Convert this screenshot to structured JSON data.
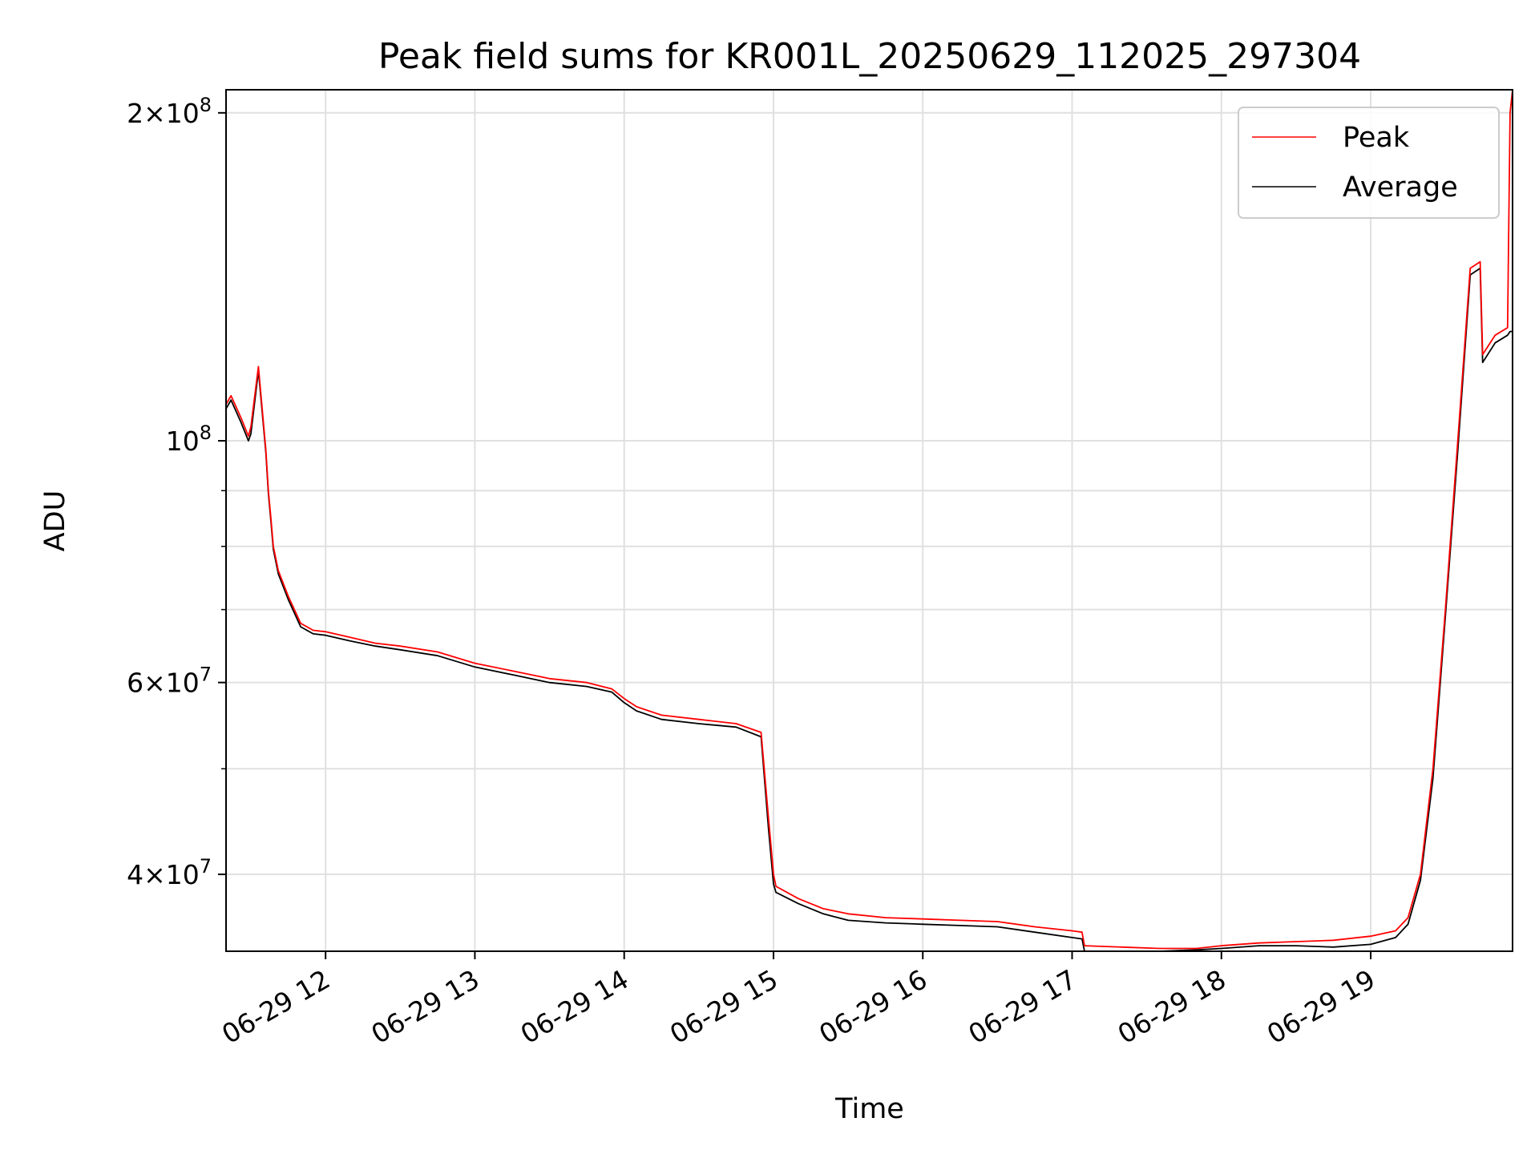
{
  "chart_data": {
    "type": "line",
    "title": "Peak field sums for KR001L_20250629_112025_297304",
    "xlabel": "Time",
    "ylabel": "ADU",
    "yscale": "log",
    "xlim": [
      "2025-06-29 11:20",
      "2025-06-29 19:57"
    ],
    "ylim": [
      34000000,
      210000000
    ],
    "grid": true,
    "legend_position": "top-right",
    "x_ticks": [
      "06-29 12",
      "06-29 13",
      "06-29 14",
      "06-29 15",
      "06-29 16",
      "06-29 17",
      "06-29 18",
      "06-29 19"
    ],
    "y_ticks": [
      {
        "value": 200000000,
        "mantissa": "2",
        "exponent": "8"
      },
      {
        "value": 100000000,
        "mantissa": "",
        "exponent": "8"
      },
      {
        "value": 60000000,
        "mantissa": "6",
        "exponent": "7"
      },
      {
        "value": 40000000,
        "mantissa": "4",
        "exponent": "7"
      }
    ],
    "series": [
      {
        "name": "Peak",
        "color": "#ff0000",
        "x": [
          "2025-06-29 11:20",
          "2025-06-29 11:22",
          "2025-06-29 11:26",
          "2025-06-29 11:29",
          "2025-06-29 11:30",
          "2025-06-29 11:33",
          "2025-06-29 11:36",
          "2025-06-29 11:37",
          "2025-06-29 11:38",
          "2025-06-29 11:39",
          "2025-06-29 11:41",
          "2025-06-29 11:45",
          "2025-06-29 11:50",
          "2025-06-29 11:55",
          "2025-06-29 12:00",
          "2025-06-29 12:10",
          "2025-06-29 12:20",
          "2025-06-29 12:30",
          "2025-06-29 12:45",
          "2025-06-29 13:00",
          "2025-06-29 13:15",
          "2025-06-29 13:30",
          "2025-06-29 13:45",
          "2025-06-29 13:55",
          "2025-06-29 14:00",
          "2025-06-29 14:05",
          "2025-06-29 14:15",
          "2025-06-29 14:30",
          "2025-06-29 14:45",
          "2025-06-29 14:55",
          "2025-06-29 14:58",
          "2025-06-29 15:00",
          "2025-06-29 15:01",
          "2025-06-29 15:10",
          "2025-06-29 15:20",
          "2025-06-29 15:30",
          "2025-06-29 15:45",
          "2025-06-29 16:00",
          "2025-06-29 16:15",
          "2025-06-29 16:30",
          "2025-06-29 16:45",
          "2025-06-29 17:00",
          "2025-06-29 17:04",
          "2025-06-29 17:05",
          "2025-06-29 17:20",
          "2025-06-29 17:35",
          "2025-06-29 17:50",
          "2025-06-29 18:00",
          "2025-06-29 18:15",
          "2025-06-29 18:30",
          "2025-06-29 18:45",
          "2025-06-29 19:00",
          "2025-06-29 19:10",
          "2025-06-29 19:15",
          "2025-06-29 19:20",
          "2025-06-29 19:25",
          "2025-06-29 19:30",
          "2025-06-29 19:35",
          "2025-06-29 19:40",
          "2025-06-29 19:44",
          "2025-06-29 19:45",
          "2025-06-29 19:50",
          "2025-06-29 19:55",
          "2025-06-29 19:56",
          "2025-06-29 19:57"
        ],
        "values": [
          108000000,
          110000000,
          105000000,
          101000000,
          103000000,
          117000000,
          98000000,
          90000000,
          85000000,
          80000000,
          76000000,
          72000000,
          68000000,
          67000000,
          66800000,
          66000000,
          65200000,
          64800000,
          64000000,
          62500000,
          61500000,
          60500000,
          60000000,
          59200000,
          58000000,
          57000000,
          56000000,
          55500000,
          55000000,
          54000000,
          45000000,
          40000000,
          39000000,
          38000000,
          37200000,
          36800000,
          36500000,
          36400000,
          36300000,
          36200000,
          35800000,
          35500000,
          35400000,
          34400000,
          34300000,
          34200000,
          34200000,
          34400000,
          34600000,
          34700000,
          34800000,
          35100000,
          35500000,
          36500000,
          40000000,
          50000000,
          70000000,
          100000000,
          144000000,
          146000000,
          120000000,
          125000000,
          127000000,
          200000000,
          210000000
        ]
      },
      {
        "name": "Average",
        "color": "#000000",
        "x": [
          "2025-06-29 11:20",
          "2025-06-29 11:22",
          "2025-06-29 11:26",
          "2025-06-29 11:29",
          "2025-06-29 11:30",
          "2025-06-29 11:33",
          "2025-06-29 11:36",
          "2025-06-29 11:37",
          "2025-06-29 11:38",
          "2025-06-29 11:39",
          "2025-06-29 11:41",
          "2025-06-29 11:45",
          "2025-06-29 11:50",
          "2025-06-29 11:55",
          "2025-06-29 12:00",
          "2025-06-29 12:10",
          "2025-06-29 12:20",
          "2025-06-29 12:30",
          "2025-06-29 12:45",
          "2025-06-29 13:00",
          "2025-06-29 13:15",
          "2025-06-29 13:30",
          "2025-06-29 13:45",
          "2025-06-29 13:55",
          "2025-06-29 14:00",
          "2025-06-29 14:05",
          "2025-06-29 14:15",
          "2025-06-29 14:30",
          "2025-06-29 14:45",
          "2025-06-29 14:55",
          "2025-06-29 14:58",
          "2025-06-29 15:00",
          "2025-06-29 15:01",
          "2025-06-29 15:10",
          "2025-06-29 15:20",
          "2025-06-29 15:30",
          "2025-06-29 15:45",
          "2025-06-29 16:00",
          "2025-06-29 16:15",
          "2025-06-29 16:30",
          "2025-06-29 16:45",
          "2025-06-29 17:00",
          "2025-06-29 17:04",
          "2025-06-29 17:05",
          "2025-06-29 17:20",
          "2025-06-29 17:35",
          "2025-06-29 17:50",
          "2025-06-29 18:00",
          "2025-06-29 18:15",
          "2025-06-29 18:30",
          "2025-06-29 18:45",
          "2025-06-29 19:00",
          "2025-06-29 19:10",
          "2025-06-29 19:15",
          "2025-06-29 19:20",
          "2025-06-29 19:25",
          "2025-06-29 19:30",
          "2025-06-29 19:35",
          "2025-06-29 19:40",
          "2025-06-29 19:44",
          "2025-06-29 19:45",
          "2025-06-29 19:50",
          "2025-06-29 19:55",
          "2025-06-29 19:56",
          "2025-06-29 19:57"
        ],
        "values": [
          107000000,
          109000000,
          104000000,
          100000000,
          101500000,
          116000000,
          97500000,
          89500000,
          84500000,
          79500000,
          75500000,
          71500000,
          67500000,
          66500000,
          66300000,
          65500000,
          64800000,
          64300000,
          63500000,
          62000000,
          61000000,
          60000000,
          59500000,
          58800000,
          57500000,
          56500000,
          55500000,
          55000000,
          54600000,
          53500000,
          44000000,
          39200000,
          38500000,
          37600000,
          36800000,
          36300000,
          36100000,
          36000000,
          35900000,
          35800000,
          35400000,
          35000000,
          34900000,
          34000000,
          34000000,
          34000000,
          34100000,
          34200000,
          34400000,
          34400000,
          34300000,
          34500000,
          35000000,
          36000000,
          39500000,
          49000000,
          69000000,
          98000000,
          142000000,
          144000000,
          118000000,
          123000000,
          125000000,
          126000000,
          126000000
        ]
      }
    ]
  }
}
